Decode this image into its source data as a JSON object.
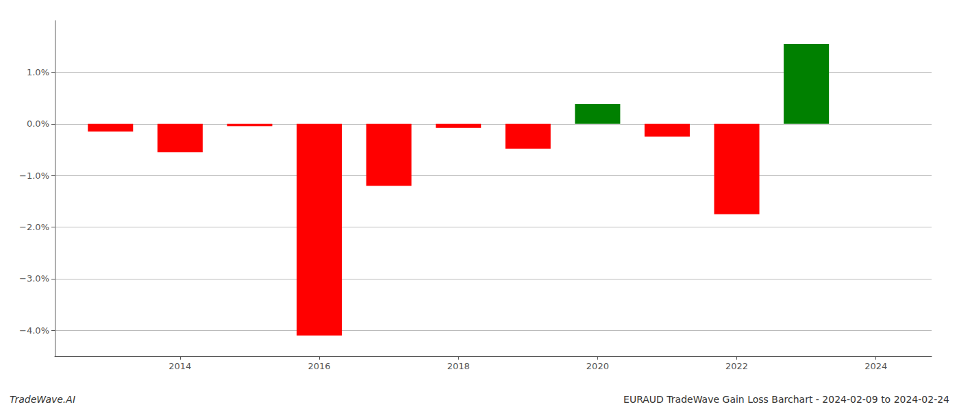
{
  "chart_data": {
    "type": "bar",
    "x": [
      2013,
      2014,
      2015,
      2016,
      2017,
      2018,
      2019,
      2020,
      2021,
      2022,
      2023
    ],
    "values": [
      -0.0015,
      -0.0055,
      -0.00045,
      -0.041,
      -0.012,
      -0.0008,
      -0.0048,
      0.0038,
      -0.0025,
      -0.0175,
      0.0155
    ],
    "colors": [
      "#ff0000",
      "#ff0000",
      "#ff0000",
      "#ff0000",
      "#ff0000",
      "#ff0000",
      "#ff0000",
      "#008000",
      "#ff0000",
      "#ff0000",
      "#008000"
    ],
    "xlabel": "EURAUD TradeWave Gain Loss Barchart - 2024-02-09 to 2024-02-24",
    "annotations": [
      "TradeWave.AI"
    ],
    "xlim": [
      2012.2,
      2024.8
    ],
    "ylim": [
      -0.045,
      0.02
    ],
    "xticks": [
      2014,
      2016,
      2018,
      2020,
      2022,
      2024
    ],
    "yticks": [
      {
        "value": -0.04,
        "label": "−4.0%"
      },
      {
        "value": -0.03,
        "label": "−3.0%"
      },
      {
        "value": -0.02,
        "label": "−2.0%"
      },
      {
        "value": -0.01,
        "label": "−1.0%"
      },
      {
        "value": 0.0,
        "label": "0.0%"
      },
      {
        "value": 0.01,
        "label": "1.0%"
      }
    ],
    "grid": true
  }
}
